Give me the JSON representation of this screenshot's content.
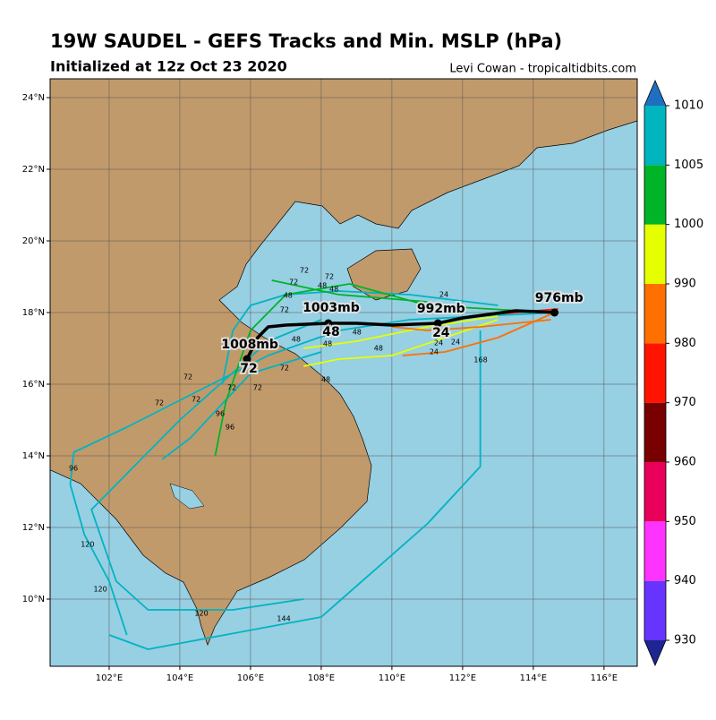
{
  "chart_data": {
    "type": "track-map",
    "title": "19W SAUDEL - GEFS Tracks and Min. MSLP (hPa)",
    "subtitle": "Initialized at 12z Oct 23 2020",
    "credit": "Levi Cowan - tropicaltidbits.com",
    "xlim": [
      100.33,
      116.94
    ],
    "ylim": [
      8.125,
      24.525
    ],
    "xticks": [
      {
        "value": 102,
        "label": "102°E"
      },
      {
        "value": 104,
        "label": "104°E"
      },
      {
        "value": 106,
        "label": "106°E"
      },
      {
        "value": 108,
        "label": "108°E"
      },
      {
        "value": 110,
        "label": "110°E"
      },
      {
        "value": 112,
        "label": "112°E"
      },
      {
        "value": 114,
        "label": "114°E"
      },
      {
        "value": 116,
        "label": "116°E"
      }
    ],
    "yticks": [
      {
        "value": 10,
        "label": "10°N"
      },
      {
        "value": 12,
        "label": "12°N"
      },
      {
        "value": 14,
        "label": "14°N"
      },
      {
        "value": 16,
        "label": "16°N"
      },
      {
        "value": 18,
        "label": "18°N"
      },
      {
        "value": 20,
        "label": "20°N"
      },
      {
        "value": 22,
        "label": "22°N"
      },
      {
        "value": 24,
        "label": "24°N"
      }
    ],
    "grid": true,
    "colorbar": {
      "ticks": [
        930,
        940,
        950,
        960,
        970,
        980,
        990,
        1000,
        1005,
        1010
      ],
      "colors": [
        "#6633ff",
        "#ff33ff",
        "#e8005a",
        "#780000",
        "#ff1400",
        "#ff7000",
        "#e6ff00",
        "#00b428",
        "#00b4c0"
      ],
      "under_color": "#1c2590",
      "over_color": "#1f6fc0"
    },
    "tracks": [
      {
        "color": "#00b4c0",
        "lon": [
          114.7,
          112.5,
          110.5,
          108.5,
          106.5,
          104.5,
          102.5,
          101,
          100.9,
          101.3,
          102,
          102.5
        ],
        "lat": [
          18.0,
          17.9,
          17.8,
          17.5,
          16.8,
          15.8,
          14.8,
          14.1,
          13.2,
          11.8,
          10.5,
          9
        ]
      },
      {
        "color": "#00b4c0",
        "lon": [
          108,
          106.5,
          104,
          102.5,
          101.5,
          102.2,
          103.1,
          105.5,
          107.5
        ],
        "lat": [
          17.8,
          17.2,
          15,
          13.5,
          12.5,
          10.5,
          9.7,
          9.7,
          10
        ]
      },
      {
        "color": "#00b4c0",
        "lon": [
          112.5,
          112.5,
          112.5,
          111,
          108,
          103.1,
          102
        ],
        "lat": [
          17.5,
          16.5,
          13.7,
          12.1,
          9.5,
          8.6,
          9
        ]
      },
      {
        "color": "#00b4c0",
        "lon": [
          113,
          110.5,
          108.5,
          107,
          106,
          105.5,
          105.2
        ],
        "lat": [
          18.2,
          18.5,
          18.6,
          18.5,
          18.2,
          17.5,
          16
        ]
      },
      {
        "color": "#00b4c0",
        "lon": [
          108,
          106,
          104.3,
          103.5
        ],
        "lat": [
          16.9,
          16.3,
          14.5,
          13.9
        ]
      },
      {
        "color": "#00b428",
        "lon": [
          114.5,
          111,
          108.8,
          107,
          106,
          105.3,
          105
        ],
        "lat": [
          18,
          18.2,
          18.8,
          18.5,
          17.5,
          15.5,
          14
        ]
      },
      {
        "color": "#00b428",
        "lon": [
          111,
          108.5,
          106.6
        ],
        "lat": [
          18.3,
          18.5,
          18.9
        ]
      },
      {
        "color": "#e6ff00",
        "lon": [
          113,
          111,
          109,
          107.5
        ],
        "lat": [
          17.9,
          17.6,
          17.2,
          17
        ]
      },
      {
        "color": "#e6ff00",
        "lon": [
          113,
          110,
          108.5,
          107.5
        ],
        "lat": [
          17.8,
          16.8,
          16.7,
          16.5
        ]
      },
      {
        "color": "#ff7000",
        "lon": [
          114.6,
          113,
          111.5,
          110.3
        ],
        "lat": [
          18,
          17.3,
          16.9,
          16.8
        ]
      },
      {
        "color": "#ff7000",
        "lon": [
          114.5,
          112.5,
          111,
          110
        ],
        "lat": [
          17.8,
          17.6,
          17.5,
          17.6
        ]
      },
      {
        "color": "#ff1400",
        "lon": [
          114.7,
          113.5,
          112.2
        ],
        "lat": [
          18.1,
          18.0,
          17.9
        ]
      }
    ],
    "hour_labels": [
      {
        "lon": 107.52,
        "lat": 19.17,
        "text": "72"
      },
      {
        "lon": 108.23,
        "lat": 19.0,
        "text": "72"
      },
      {
        "lon": 107.22,
        "lat": 18.85,
        "text": "72"
      },
      {
        "lon": 107.06,
        "lat": 18.47,
        "text": "48"
      },
      {
        "lon": 108.03,
        "lat": 18.75,
        "text": "48"
      },
      {
        "lon": 108.36,
        "lat": 18.65,
        "text": "48"
      },
      {
        "lon": 111.47,
        "lat": 18.5,
        "text": "24"
      },
      {
        "lon": 106.96,
        "lat": 18.08,
        "text": "72"
      },
      {
        "lon": 107.29,
        "lat": 17.25,
        "text": "48"
      },
      {
        "lon": 109.01,
        "lat": 17.45,
        "text": "48"
      },
      {
        "lon": 108.18,
        "lat": 17.13,
        "text": "48"
      },
      {
        "lon": 109.62,
        "lat": 17.0,
        "text": "48"
      },
      {
        "lon": 111.32,
        "lat": 17.15,
        "text": "24"
      },
      {
        "lon": 111.8,
        "lat": 17.18,
        "text": "24"
      },
      {
        "lon": 111.19,
        "lat": 16.9,
        "text": "24"
      },
      {
        "lon": 112.51,
        "lat": 16.68,
        "text": "168"
      },
      {
        "lon": 104.23,
        "lat": 16.2,
        "text": "72"
      },
      {
        "lon": 106.96,
        "lat": 16.45,
        "text": "72"
      },
      {
        "lon": 108.13,
        "lat": 16.13,
        "text": "48"
      },
      {
        "lon": 105.47,
        "lat": 15.9,
        "text": "72"
      },
      {
        "lon": 106.2,
        "lat": 15.9,
        "text": "72"
      },
      {
        "lon": 103.42,
        "lat": 15.47,
        "text": "72"
      },
      {
        "lon": 104.46,
        "lat": 15.58,
        "text": "72"
      },
      {
        "lon": 105.14,
        "lat": 15.17,
        "text": "96"
      },
      {
        "lon": 105.42,
        "lat": 14.8,
        "text": "96"
      },
      {
        "lon": 100.99,
        "lat": 13.65,
        "text": "96"
      },
      {
        "lon": 101.39,
        "lat": 11.52,
        "text": "120"
      },
      {
        "lon": 101.75,
        "lat": 10.27,
        "text": "120"
      },
      {
        "lon": 104.61,
        "lat": 9.6,
        "text": "120"
      },
      {
        "lon": 106.94,
        "lat": 9.45,
        "text": "144"
      }
    ],
    "mean_track": {
      "color": "#000000",
      "lon": [
        114.7,
        113.5,
        112,
        111.3,
        110,
        109,
        108.2,
        107,
        106.5,
        106.2,
        105.9
      ],
      "lat": [
        18.0,
        18.05,
        17.85,
        17.7,
        17.65,
        17.7,
        17.7,
        17.65,
        17.6,
        17.3,
        16.7
      ],
      "points_lon": [
        114.6,
        111.3,
        108.2,
        105.9
      ],
      "points_lat": [
        18.0,
        17.7,
        17.7,
        16.7
      ],
      "labels": [
        {
          "lon": 114.73,
          "lat": 18.4,
          "text": "976mb"
        },
        {
          "lon": 111.39,
          "lat": 18.1,
          "text": "992mb"
        },
        {
          "lon": 111.39,
          "lat": 17.42,
          "text": "24"
        },
        {
          "lon": 108.28,
          "lat": 18.125,
          "text": "1003mb"
        },
        {
          "lon": 108.28,
          "lat": 17.45,
          "text": "48"
        },
        {
          "lon": 105.98,
          "lat": 17.1,
          "text": "1008mb"
        },
        {
          "lon": 105.95,
          "lat": 16.42,
          "text": "72"
        }
      ]
    }
  }
}
